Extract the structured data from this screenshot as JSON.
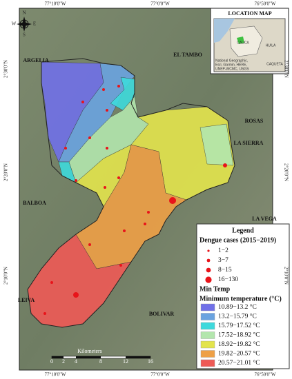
{
  "map": {
    "top_coords": [
      "77°10'0\"W",
      "77°0'0\"W",
      "76°50'0\"W"
    ],
    "bottom_coords": [
      "77°10'0\"W",
      "77°0'0\"W",
      "76°50'0\"W"
    ],
    "left_coords": [
      "2°30'0\"N",
      "2°20'0\"N",
      "2°10'0\"N"
    ],
    "right_coords": [
      "2°30'0\"N",
      "2°20'0\"N",
      "2°10'0\"N"
    ],
    "compass": [
      "N",
      "E",
      "S",
      "W"
    ],
    "places": [
      "ARGELIA",
      "EL TAMBO",
      "ROSAS",
      "LA SIERRA",
      "BALBOA",
      "LA VEGA",
      "LEIVA",
      "BOLIVAR"
    ],
    "location_map": {
      "title": "LOCATION MAP",
      "labels": [
        "CAUCA",
        "HUILA",
        "CAQUETA"
      ],
      "credits": [
        "National Geographic,",
        "Esri, Garmin, HERE,",
        "UNEP-WCMC, USGS"
      ]
    },
    "scale": {
      "ticks": [
        "0",
        "2",
        "4",
        "8",
        "12",
        "16"
      ],
      "unit": "Kilometers"
    },
    "legend": {
      "title": "Legend",
      "dengue_title": "Dengue cases (2015−2019)",
      "dengue_classes": [
        "1−2",
        "3−7",
        "8−15",
        "16−130"
      ],
      "temp_layer": "Min Temp",
      "temp_title": "Minimum temperature (°C)",
      "temp_classes": [
        {
          "label": "10.89−13.2 °C",
          "color": "#7070e8"
        },
        {
          "label": "13.2−15.79 °C",
          "color": "#6aa3e0"
        },
        {
          "label": "15.79−17.52 °C",
          "color": "#3ed9dc"
        },
        {
          "label": "17.52−18.92 °C",
          "color": "#b3e6ad"
        },
        {
          "label": "18.92−19.82 °C",
          "color": "#e3e44c"
        },
        {
          "label": "19.82−20.57 °C",
          "color": "#eea046"
        },
        {
          "label": "20.57−21.01 °C",
          "color": "#ee5a55"
        }
      ]
    }
  }
}
